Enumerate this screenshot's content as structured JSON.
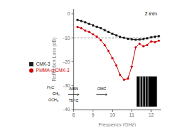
{
  "chart_data": {
    "type": "line",
    "x": [
      8.2,
      8.4,
      8.6,
      8.8,
      9.0,
      9.2,
      9.4,
      9.6,
      9.8,
      10.0,
      10.2,
      10.4,
      10.6,
      10.8,
      11.0,
      11.2,
      11.4,
      11.6,
      11.8,
      12.0,
      12.2,
      12.4
    ],
    "series": [
      {
        "name": "CMK-3",
        "color": "#1a1a1a",
        "marker": "square",
        "values": [
          -2.5,
          -3.0,
          -3.5,
          -4.2,
          -4.8,
          -5.4,
          -6.0,
          -6.8,
          -7.5,
          -8.3,
          -9.0,
          -9.6,
          -10.0,
          -10.4,
          -10.6,
          -10.8,
          -10.7,
          -10.5,
          -10.2,
          -9.8,
          -9.5,
          -9.3
        ]
      },
      {
        "name": "PMMA-g-CMK-3",
        "color": "#cc0000",
        "marker": "circle",
        "values": [
          -5.5,
          -6.0,
          -7.0,
          -7.5,
          -8.5,
          -9.5,
          -11.0,
          -13.0,
          -15.5,
          -18.5,
          -21.5,
          -25.5,
          -27.5,
          -27.0,
          -22.0,
          -14.0,
          -12.5,
          -13.5,
          -13.0,
          -11.5,
          -11.8,
          -11.2
        ]
      }
    ],
    "xlabel": "Frequency (GHz)",
    "ylabel": "Reflection Loss (dB)",
    "xlim": [
      8.0,
      12.5
    ],
    "ylim": [
      -40,
      2
    ],
    "xticks": [
      8,
      9,
      10,
      11,
      12
    ],
    "yticks": [
      0,
      -10,
      -20,
      -30,
      -40
    ],
    "hline": -10,
    "annotations": [
      "2 mm",
      "H₂C",
      "CH₃",
      "OCH₃",
      "AIBN",
      "75 °C",
      "OMC"
    ],
    "legend": "center left",
    "grid": false
  }
}
